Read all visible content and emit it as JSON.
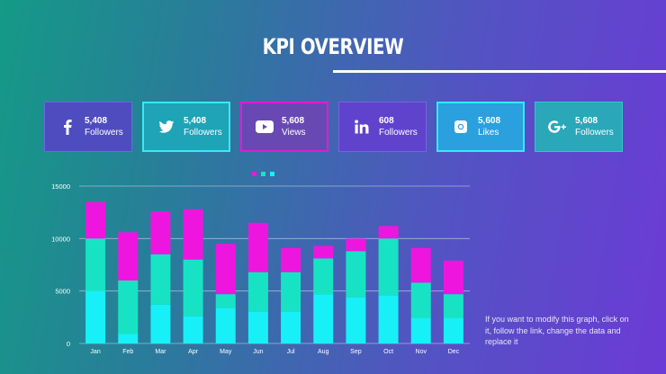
{
  "title": "KPI OVERVIEW",
  "kpis": [
    {
      "icon": "facebook-icon",
      "value": "5,408",
      "label": "Followers"
    },
    {
      "icon": "twitter-icon",
      "value": "5,408",
      "label": "Followers"
    },
    {
      "icon": "youtube-icon",
      "value": "5,608",
      "label": "Views"
    },
    {
      "icon": "linkedin-icon",
      "value": "608",
      "label": "Followers"
    },
    {
      "icon": "instagram-icon",
      "value": "5,608",
      "label": "Likes"
    },
    {
      "icon": "google-plus-icon",
      "value": "5,608",
      "label": "Followers"
    }
  ],
  "colors": {
    "series1": "#17f0f7",
    "series2": "#17e3c4",
    "series3": "#ee16de",
    "grid": "#b9c4da"
  },
  "note": "If you want to modify this graph, click on it, follow the link, change the data and replace it",
  "chart_data": {
    "type": "bar",
    "stacked": true,
    "categories": [
      "Jan",
      "Feb",
      "Mar",
      "Apr",
      "May",
      "Jun",
      "Jul",
      "Aug",
      "Sep",
      "Oct",
      "Nov",
      "Dec"
    ],
    "series": [
      {
        "values": [
          5000,
          900,
          3700,
          2600,
          3400,
          3000,
          3000,
          4700,
          4400,
          4600,
          2400,
          2400
        ]
      },
      {
        "values": [
          5000,
          5100,
          4800,
          5400,
          1300,
          3800,
          3800,
          3400,
          4400,
          5400,
          3400,
          2300
        ]
      },
      {
        "values": [
          3500,
          4600,
          4100,
          4800,
          4800,
          4700,
          2300,
          1200,
          1200,
          1200,
          3300,
          3200
        ]
      }
    ],
    "ylim": [
      0,
      15000
    ],
    "yticks": [
      "0",
      "5000",
      "10000",
      "15000"
    ],
    "grid": true,
    "legend": "top"
  }
}
